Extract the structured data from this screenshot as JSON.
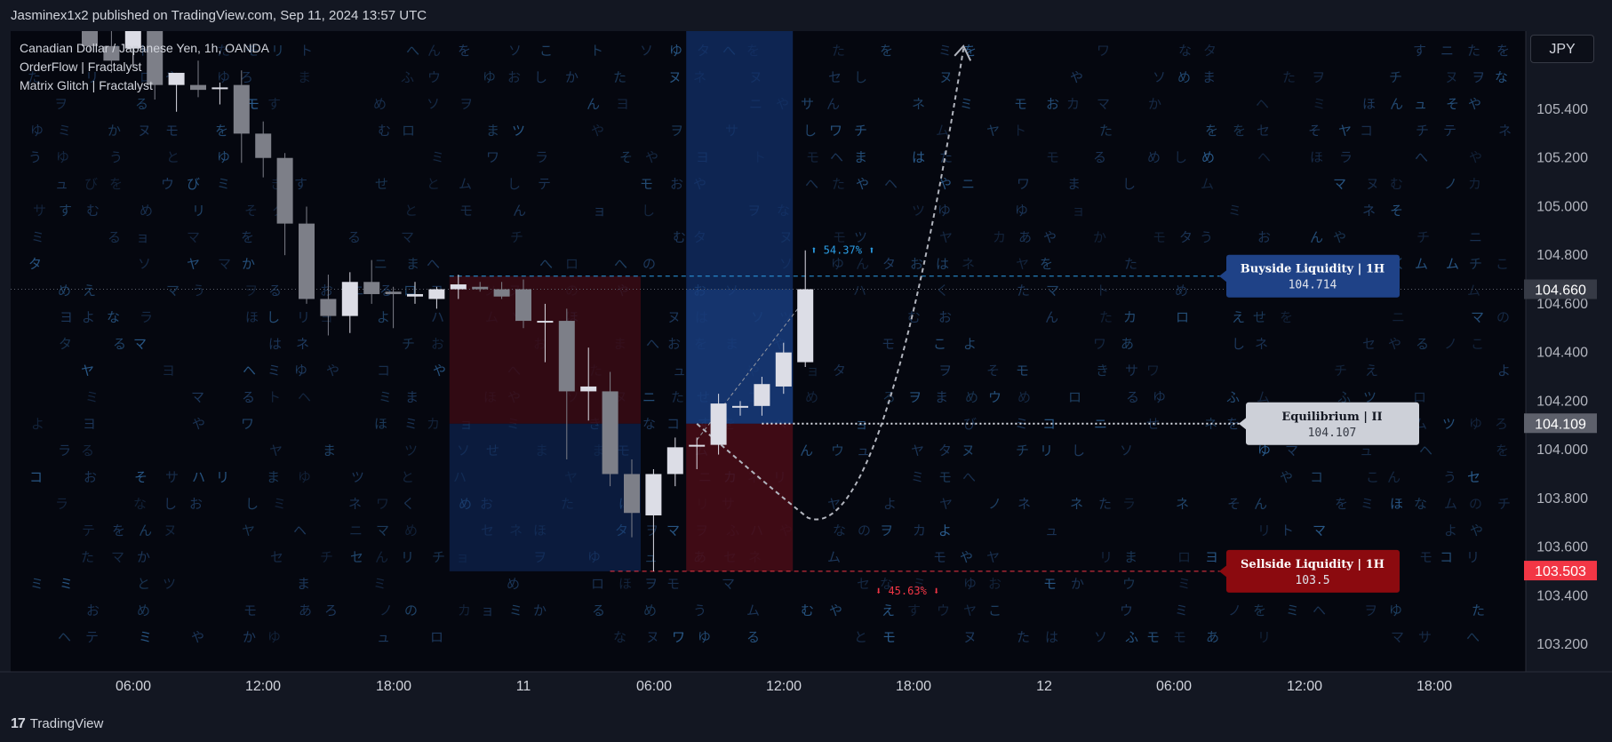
{
  "header": {
    "published": "Jasminex1x2 published on TradingView.com, Sep 11, 2024 13:57 UTC"
  },
  "legend": {
    "line1": "Canadian Dollar / Japanese Yen, 1h, OANDA",
    "line2": "OrderFlow | Fractalyst",
    "line3": "Matrix Glitch | Fractalyst"
  },
  "currency_button": "JPY",
  "footer": {
    "brand": "TradingView",
    "logo_glyph": "17"
  },
  "colors": {
    "background": "#05070f",
    "matrix_text": "#1e3a5f",
    "candle_bull": "#dcdde6",
    "candle_bear": "#7d7f88",
    "buyside": "#1f4287",
    "sellside": "#8b0a0f",
    "equilibrium": "#cdd0d8",
    "blue_zone": "#0f2a5c",
    "red_zone": "#3a0a14"
  },
  "matrix_glyphs": "ネセテノリあムはんめすびヨヲウなやをたくめラうタソまたきヤハミュモなせしリやヤゆヌカサるへモコおョふよヘモんのヲワミツチまニろチヌトとムゆつをしマやおニロネむマえそタヌミゆかへるほこ",
  "chart_data": {
    "type": "candlestick",
    "symbol": "Canadian Dollar / Japanese Yen, 1h, OANDA",
    "ylim": [
      103.1,
      105.75
    ],
    "y_ticks": [
      "105.400",
      "105.200",
      "105.000",
      "104.800",
      "104.600",
      "104.400",
      "104.200",
      "104.000",
      "103.800",
      "103.600",
      "103.400",
      "103.200"
    ],
    "x_ticks": [
      "06:00",
      "12:00",
      "18:00",
      "11",
      "06:00",
      "12:00",
      "18:00",
      "12",
      "06:00",
      "12:00",
      "18:00"
    ],
    "price_labels": [
      {
        "text": "104.660",
        "price": 104.66,
        "color": "#363a45"
      },
      {
        "text": "104.109",
        "price": 104.109,
        "color": "#5d606b"
      },
      {
        "text": "103.503",
        "price": 103.503,
        "color": "#f23645"
      }
    ],
    "candles": [
      {
        "o": 105.74,
        "h": 105.78,
        "l": 105.64,
        "c": 105.66
      },
      {
        "o": 105.66,
        "h": 105.74,
        "l": 105.55,
        "c": 105.6
      },
      {
        "o": 105.65,
        "h": 105.8,
        "l": 105.58,
        "c": 105.74
      },
      {
        "o": 105.74,
        "h": 105.8,
        "l": 105.44,
        "c": 105.5
      },
      {
        "o": 105.5,
        "h": 105.55,
        "l": 105.39,
        "c": 105.55
      },
      {
        "o": 105.5,
        "h": 105.6,
        "l": 105.45,
        "c": 105.48
      },
      {
        "o": 105.49,
        "h": 105.51,
        "l": 105.42,
        "c": 105.49
      },
      {
        "o": 105.5,
        "h": 105.56,
        "l": 105.18,
        "c": 105.3
      },
      {
        "o": 105.3,
        "h": 105.35,
        "l": 105.12,
        "c": 105.2
      },
      {
        "o": 105.2,
        "h": 105.22,
        "l": 104.8,
        "c": 104.93
      },
      {
        "o": 104.93,
        "h": 105.0,
        "l": 104.6,
        "c": 104.62
      },
      {
        "o": 104.62,
        "h": 104.72,
        "l": 104.47,
        "c": 104.55
      },
      {
        "o": 104.55,
        "h": 104.73,
        "l": 104.48,
        "c": 104.69
      },
      {
        "o": 104.69,
        "h": 104.78,
        "l": 104.6,
        "c": 104.64
      },
      {
        "o": 104.65,
        "h": 104.67,
        "l": 104.5,
        "c": 104.64
      },
      {
        "o": 104.63,
        "h": 104.69,
        "l": 104.6,
        "c": 104.64
      },
      {
        "o": 104.62,
        "h": 104.67,
        "l": 104.58,
        "c": 104.66
      },
      {
        "o": 104.66,
        "h": 104.72,
        "l": 104.62,
        "c": 104.68
      },
      {
        "o": 104.67,
        "h": 104.69,
        "l": 104.65,
        "c": 104.66
      },
      {
        "o": 104.66,
        "h": 104.69,
        "l": 104.62,
        "c": 104.63
      },
      {
        "o": 104.66,
        "h": 104.7,
        "l": 104.5,
        "c": 104.53
      },
      {
        "o": 104.53,
        "h": 104.6,
        "l": 104.36,
        "c": 104.53
      },
      {
        "o": 104.53,
        "h": 104.58,
        "l": 103.96,
        "c": 104.24
      },
      {
        "o": 104.24,
        "h": 104.42,
        "l": 104.12,
        "c": 104.26
      },
      {
        "o": 104.24,
        "h": 104.32,
        "l": 103.85,
        "c": 103.9
      },
      {
        "o": 103.9,
        "h": 103.96,
        "l": 103.64,
        "c": 103.74
      },
      {
        "o": 103.73,
        "h": 103.92,
        "l": 103.5,
        "c": 103.9
      },
      {
        "o": 103.9,
        "h": 104.05,
        "l": 103.85,
        "c": 104.01
      },
      {
        "o": 104.02,
        "h": 104.05,
        "l": 103.92,
        "c": 104.02
      },
      {
        "o": 104.02,
        "h": 104.23,
        "l": 103.98,
        "c": 104.19
      },
      {
        "o": 104.18,
        "h": 104.2,
        "l": 104.14,
        "c": 104.18
      },
      {
        "o": 104.18,
        "h": 104.3,
        "l": 104.14,
        "c": 104.27
      },
      {
        "o": 104.26,
        "h": 104.44,
        "l": 104.23,
        "c": 104.4
      },
      {
        "o": 104.36,
        "h": 104.82,
        "l": 104.34,
        "c": 104.66
      }
    ],
    "levels": {
      "buyside": {
        "label": "Buyside Liquidity",
        "tf": "1H",
        "value": "104.714",
        "price": 104.714
      },
      "equilibrium": {
        "label": "Equilibrium",
        "tf": "II",
        "value": "104.107",
        "price": 104.107
      },
      "sellside": {
        "label": "Sellside Liquidity",
        "tf": "1H",
        "value": "103.5",
        "price": 103.5
      }
    },
    "annotations": {
      "up_pct": "⬆ 54.37% ⬆",
      "down_pct": "⬇ 45.63% ⬇"
    }
  }
}
